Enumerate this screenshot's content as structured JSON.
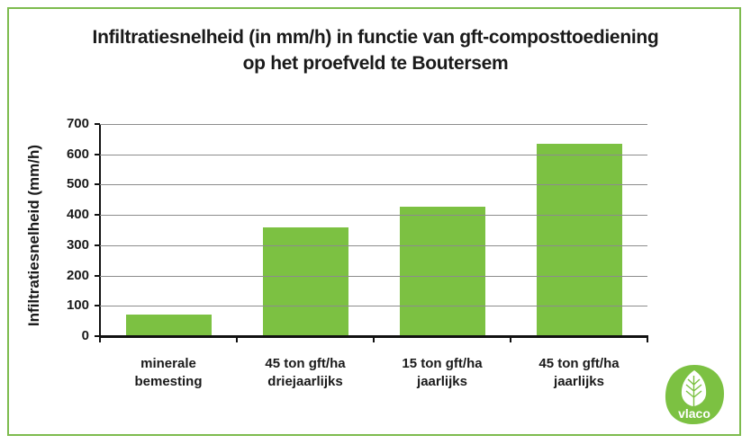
{
  "chart_data": {
    "type": "bar",
    "title": "Infiltratiesnelheid (in mm/h) in functie van gft-composttoediening op het proefveld te Boutersem",
    "title_lines": [
      "Infiltratiesnelheid (in mm/h) in functie van gft-composttoediening",
      "op het proefveld te Boutersem"
    ],
    "xlabel": "",
    "ylabel": "Infiltratiesnelheid (mm/h)",
    "categories": [
      [
        "minerale",
        "bemesting"
      ],
      [
        "45 ton gft/ha",
        "driejaarlijks"
      ],
      [
        "15 ton gft/ha",
        "jaarlijks"
      ],
      [
        "45 ton gft/ha",
        "jaarlijks"
      ]
    ],
    "category_labels": [
      "minerale bemesting",
      "45 ton gft/ha driejaarlijks",
      "15 ton gft/ha jaarlijks",
      "45 ton gft/ha jaarlijks"
    ],
    "values": [
      72,
      358,
      427,
      636
    ],
    "ylim": [
      0,
      700
    ],
    "yticks": [
      0,
      100,
      200,
      300,
      400,
      500,
      600,
      700
    ],
    "grid": true,
    "legend": null,
    "bar_color": "#7cc142"
  },
  "frame": {
    "border_color": "#7dbb4e"
  },
  "logo": {
    "text": "vlaco",
    "color": "#7cc142"
  }
}
